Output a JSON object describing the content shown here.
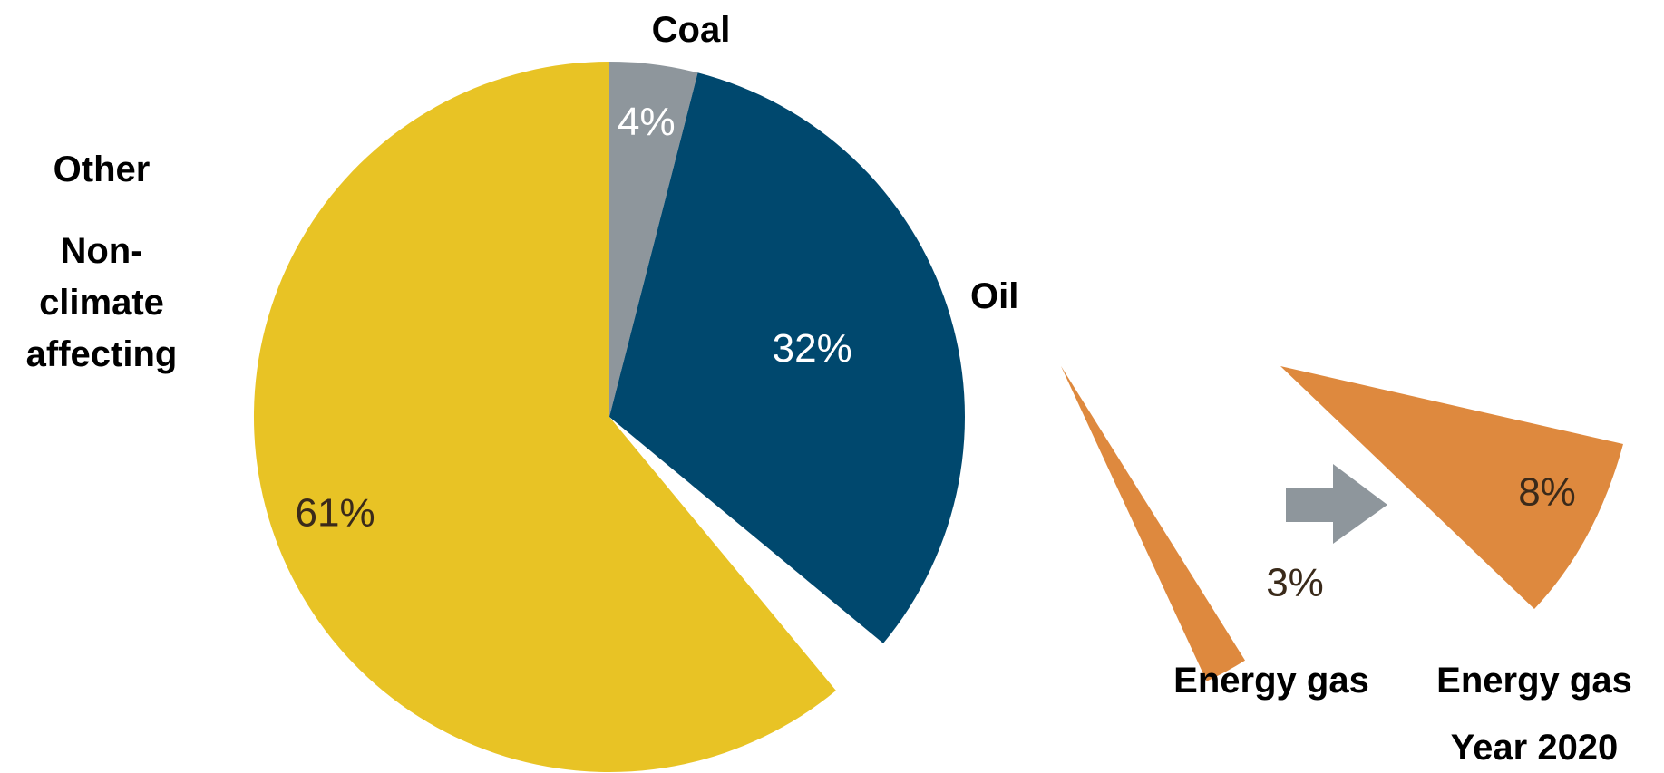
{
  "chart_data": [
    {
      "type": "pie",
      "slices": [
        {
          "label": "Coal",
          "value": 4,
          "value_label": "4%",
          "color": "#8E969C",
          "label_color": "#ffffff"
        },
        {
          "label": "Oil",
          "value": 32,
          "value_label": "32%",
          "color": "#00486E",
          "label_color": "#ffffff"
        },
        {
          "label": "Energy gas",
          "value": 3,
          "value_label": "3%",
          "color": "#DE893E",
          "label_color": "#3a2a1a",
          "exploded": true
        },
        {
          "label": "Other Non-climate affecting",
          "value": 61,
          "value_label": "61%",
          "color": "#E8C325",
          "label_color": "#3a2a1a"
        }
      ]
    },
    {
      "type": "pie",
      "slices": [
        {
          "label": "Energy gas",
          "value": 8,
          "value_label": "8%",
          "color": "#DE893E",
          "label_color": "#3a2a1a"
        }
      ],
      "subtitle": "Year 2020"
    }
  ],
  "labels": {
    "coal": "Coal",
    "oil": "Oil",
    "other_l1": "Other",
    "other_l2": "Non-",
    "other_l3": "climate",
    "other_l4": "affecting",
    "gas_now": "Energy gas",
    "gas_future": "Energy gas",
    "year": "Year 2020"
  },
  "arrow_color": "#8E969C"
}
